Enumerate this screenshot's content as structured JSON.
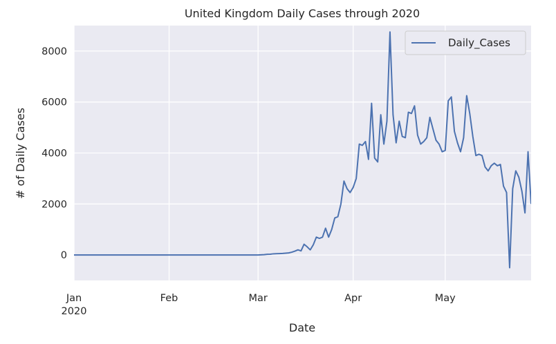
{
  "chart_data": {
    "type": "line",
    "title": "United Kingdom Daily Cases through 2020",
    "xlabel": "Date",
    "ylabel": "# of Daily Cases",
    "x_tick_labels": [
      "Jan\n2020",
      "Feb",
      "Mar",
      "Apr",
      "May"
    ],
    "y_tick_labels": [
      "0",
      "2000",
      "4000",
      "6000",
      "8000"
    ],
    "ylim": [
      -1000,
      9000
    ],
    "xlim": [
      "2020-01-01",
      "2020-05-29"
    ],
    "grid": true,
    "legend_position": "top-right",
    "colors": {
      "line": "#4c72b0",
      "background": "#eaeaf2",
      "grid": "#ffffff"
    },
    "series": [
      {
        "name": "Daily_Cases",
        "points": [
          [
            "2020-01-01",
            0
          ],
          [
            "2020-01-15",
            0
          ],
          [
            "2020-02-01",
            0
          ],
          [
            "2020-02-15",
            0
          ],
          [
            "2020-03-01",
            0
          ],
          [
            "2020-03-02",
            5
          ],
          [
            "2020-03-03",
            12
          ],
          [
            "2020-03-04",
            25
          ],
          [
            "2020-03-05",
            30
          ],
          [
            "2020-03-06",
            45
          ],
          [
            "2020-03-07",
            50
          ],
          [
            "2020-03-08",
            55
          ],
          [
            "2020-03-09",
            60
          ],
          [
            "2020-03-10",
            70
          ],
          [
            "2020-03-11",
            80
          ],
          [
            "2020-03-12",
            110
          ],
          [
            "2020-03-13",
            150
          ],
          [
            "2020-03-14",
            200
          ],
          [
            "2020-03-15",
            160
          ],
          [
            "2020-03-16",
            420
          ],
          [
            "2020-03-17",
            320
          ],
          [
            "2020-03-18",
            200
          ],
          [
            "2020-03-19",
            400
          ],
          [
            "2020-03-20",
            700
          ],
          [
            "2020-03-21",
            650
          ],
          [
            "2020-03-22",
            700
          ],
          [
            "2020-03-23",
            1050
          ],
          [
            "2020-03-24",
            700
          ],
          [
            "2020-03-25",
            1000
          ],
          [
            "2020-03-26",
            1450
          ],
          [
            "2020-03-27",
            1500
          ],
          [
            "2020-03-28",
            2000
          ],
          [
            "2020-03-29",
            2900
          ],
          [
            "2020-03-30",
            2600
          ],
          [
            "2020-03-31",
            2450
          ],
          [
            "2020-04-01",
            2650
          ],
          [
            "2020-04-02",
            3000
          ],
          [
            "2020-04-03",
            4350
          ],
          [
            "2020-04-04",
            4300
          ],
          [
            "2020-04-05",
            4450
          ],
          [
            "2020-04-06",
            3750
          ],
          [
            "2020-04-07",
            5950
          ],
          [
            "2020-04-08",
            3800
          ],
          [
            "2020-04-09",
            3650
          ],
          [
            "2020-04-10",
            5500
          ],
          [
            "2020-04-11",
            4350
          ],
          [
            "2020-04-12",
            5250
          ],
          [
            "2020-04-13",
            8750
          ],
          [
            "2020-04-14",
            5500
          ],
          [
            "2020-04-15",
            4400
          ],
          [
            "2020-04-16",
            5250
          ],
          [
            "2020-04-17",
            4650
          ],
          [
            "2020-04-18",
            4600
          ],
          [
            "2020-04-19",
            5600
          ],
          [
            "2020-04-20",
            5550
          ],
          [
            "2020-04-21",
            5850
          ],
          [
            "2020-04-22",
            4700
          ],
          [
            "2020-04-23",
            4350
          ],
          [
            "2020-04-24",
            4450
          ],
          [
            "2020-04-25",
            4600
          ],
          [
            "2020-04-26",
            5400
          ],
          [
            "2020-04-27",
            4950
          ],
          [
            "2020-04-28",
            4500
          ],
          [
            "2020-04-29",
            4350
          ],
          [
            "2020-04-30",
            4050
          ],
          [
            "2020-05-01",
            4100
          ],
          [
            "2020-05-02",
            6050
          ],
          [
            "2020-05-03",
            6200
          ],
          [
            "2020-05-04",
            4850
          ],
          [
            "2020-05-05",
            4400
          ],
          [
            "2020-05-06",
            4050
          ],
          [
            "2020-05-07",
            4600
          ],
          [
            "2020-05-08",
            6250
          ],
          [
            "2020-05-09",
            5550
          ],
          [
            "2020-05-10",
            4650
          ],
          [
            "2020-05-11",
            3900
          ],
          [
            "2020-05-12",
            3950
          ],
          [
            "2020-05-13",
            3900
          ],
          [
            "2020-05-14",
            3450
          ],
          [
            "2020-05-15",
            3300
          ],
          [
            "2020-05-16",
            3500
          ],
          [
            "2020-05-17",
            3600
          ],
          [
            "2020-05-18",
            3500
          ],
          [
            "2020-05-19",
            3550
          ],
          [
            "2020-05-20",
            2700
          ],
          [
            "2020-05-21",
            2450
          ],
          [
            "2020-05-22",
            -500
          ],
          [
            "2020-05-23",
            2600
          ],
          [
            "2020-05-24",
            3300
          ],
          [
            "2020-05-25",
            3050
          ],
          [
            "2020-05-26",
            2500
          ],
          [
            "2020-05-27",
            1650
          ],
          [
            "2020-05-28",
            4050
          ],
          [
            "2020-05-29",
            2000
          ]
        ]
      }
    ]
  }
}
